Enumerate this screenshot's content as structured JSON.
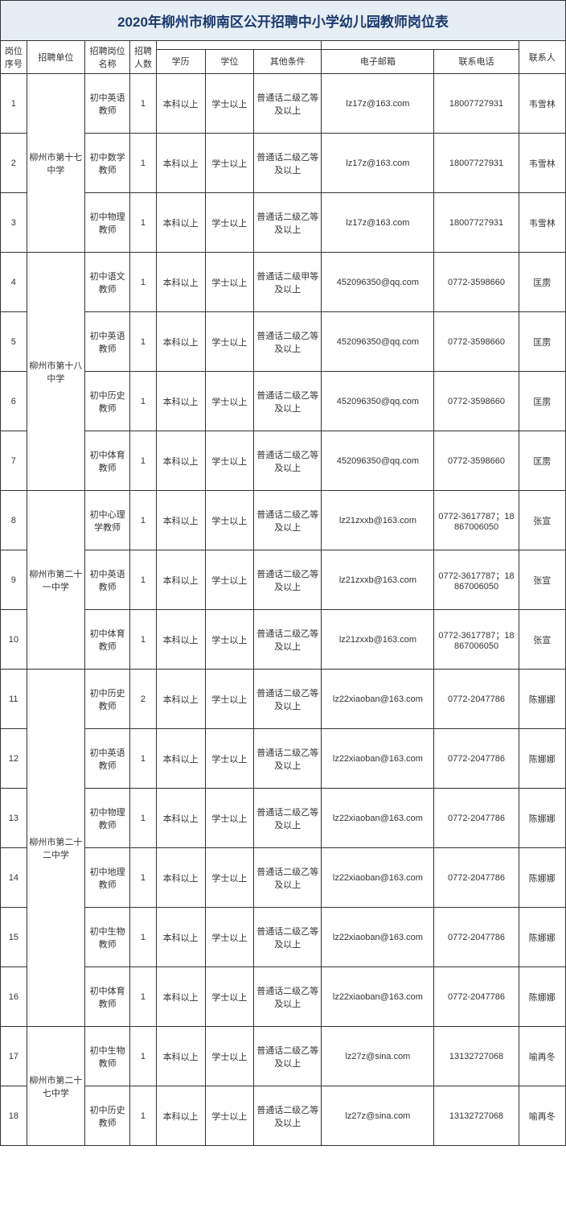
{
  "title": "2020年柳州市柳南区公开招聘中小学幼儿园教师岗位表",
  "columns": {
    "seq": "岗位序号",
    "unit": "招聘单位",
    "position": "招聘岗位名称",
    "count": "招聘人数",
    "edu": "学历",
    "degree": "学位",
    "other": "其他条件",
    "email": "电子邮箱",
    "phone": "联系电话",
    "contact": "联系人"
  },
  "units": [
    {
      "name": "柳州市第十七中学",
      "rows": [
        {
          "seq": "1",
          "position": "初中英语教师",
          "count": "1",
          "edu": "本科以上",
          "degree": "学士以上",
          "other": "普通话二级乙等及以上",
          "email": "lz17z@163.com",
          "phone": "18007727931",
          "contact": "韦雪林"
        },
        {
          "seq": "2",
          "position": "初中数学教师",
          "count": "1",
          "edu": "本科以上",
          "degree": "学士以上",
          "other": "普通话二级乙等及以上",
          "email": "lz17z@163.com",
          "phone": "18007727931",
          "contact": "韦雪林"
        },
        {
          "seq": "3",
          "position": "初中物理教师",
          "count": "1",
          "edu": "本科以上",
          "degree": "学士以上",
          "other": "普通话二级乙等及以上",
          "email": "lz17z@163.com",
          "phone": "18007727931",
          "contact": "韦雪林"
        }
      ]
    },
    {
      "name": "柳州市第十八中学",
      "rows": [
        {
          "seq": "4",
          "position": "初中语文教师",
          "count": "1",
          "edu": "本科以上",
          "degree": "学士以上",
          "other": "普通话二级甲等及以上",
          "email": "452096350@qq.com",
          "phone": "0772-3598660",
          "contact": "匡雳"
        },
        {
          "seq": "5",
          "position": "初中英语教师",
          "count": "1",
          "edu": "本科以上",
          "degree": "学士以上",
          "other": "普通话二级乙等及以上",
          "email": "452096350@qq.com",
          "phone": "0772-3598660",
          "contact": "匡雳"
        },
        {
          "seq": "6",
          "position": "初中历史教师",
          "count": "1",
          "edu": "本科以上",
          "degree": "学士以上",
          "other": "普通话二级乙等及以上",
          "email": "452096350@qq.com",
          "phone": "0772-3598660",
          "contact": "匡雳"
        },
        {
          "seq": "7",
          "position": "初中体育教师",
          "count": "1",
          "edu": "本科以上",
          "degree": "学士以上",
          "other": "普通话二级乙等及以上",
          "email": "452096350@qq.com",
          "phone": "0772-3598660",
          "contact": "匡雳"
        }
      ]
    },
    {
      "name": "柳州市第二十一中学",
      "rows": [
        {
          "seq": "8",
          "position": "初中心理学教师",
          "count": "1",
          "edu": "本科以上",
          "degree": "学士以上",
          "other": "普通话二级乙等及以上",
          "email": "lz21zxxb@163.com",
          "phone": "0772-3617787；18867006050",
          "contact": "张宣"
        },
        {
          "seq": "9",
          "position": "初中英语教师",
          "count": "1",
          "edu": "本科以上",
          "degree": "学士以上",
          "other": "普通话二级乙等及以上",
          "email": "lz21zxxb@163.com",
          "phone": "0772-3617787；18867006050",
          "contact": "张宣"
        },
        {
          "seq": "10",
          "position": "初中体育教师",
          "count": "1",
          "edu": "本科以上",
          "degree": "学士以上",
          "other": "普通话二级乙等及以上",
          "email": "lz21zxxb@163.com",
          "phone": "0772-3617787；18867006050",
          "contact": "张宣"
        }
      ]
    },
    {
      "name": "柳州市第二十二中学",
      "rows": [
        {
          "seq": "11",
          "position": "初中历史教师",
          "count": "2",
          "edu": "本科以上",
          "degree": "学士以上",
          "other": "普通话二级乙等及以上",
          "email": "lz22xiaoban@163.com",
          "phone": "0772-2047786",
          "contact": "陈娜娜"
        },
        {
          "seq": "12",
          "position": "初中英语教师",
          "count": "1",
          "edu": "本科以上",
          "degree": "学士以上",
          "other": "普通话二级乙等及以上",
          "email": "lz22xiaoban@163.com",
          "phone": "0772-2047786",
          "contact": "陈娜娜"
        },
        {
          "seq": "13",
          "position": "初中物理教师",
          "count": "1",
          "edu": "本科以上",
          "degree": "学士以上",
          "other": "普通话二级乙等及以上",
          "email": "lz22xiaoban@163.com",
          "phone": "0772-2047786",
          "contact": "陈娜娜"
        },
        {
          "seq": "14",
          "position": "初中地理教师",
          "count": "1",
          "edu": "本科以上",
          "degree": "学士以上",
          "other": "普通话二级乙等及以上",
          "email": "lz22xiaoban@163.com",
          "phone": "0772-2047786",
          "contact": "陈娜娜"
        },
        {
          "seq": "15",
          "position": "初中生物教师",
          "count": "1",
          "edu": "本科以上",
          "degree": "学士以上",
          "other": "普通话二级乙等及以上",
          "email": "lz22xiaoban@163.com",
          "phone": "0772-2047786",
          "contact": "陈娜娜"
        },
        {
          "seq": "16",
          "position": "初中体育教师",
          "count": "1",
          "edu": "本科以上",
          "degree": "学士以上",
          "other": "普通话二级乙等及以上",
          "email": "lz22xiaoban@163.com",
          "phone": "0772-2047786",
          "contact": "陈娜娜"
        }
      ]
    },
    {
      "name": "柳州市第二十七中学",
      "rows": [
        {
          "seq": "17",
          "position": "初中生物教师",
          "count": "1",
          "edu": "本科以上",
          "degree": "学士以上",
          "other": "普通话二级乙等及以上",
          "email": "lz27z@sina.com",
          "phone": "13132727068",
          "contact": "喻再冬"
        },
        {
          "seq": "18",
          "position": "初中历史教师",
          "count": "1",
          "edu": "本科以上",
          "degree": "学士以上",
          "other": "普通话二级乙等及以上",
          "email": "lz27z@sina.com",
          "phone": "13132727068",
          "contact": "喻再冬"
        }
      ]
    }
  ]
}
